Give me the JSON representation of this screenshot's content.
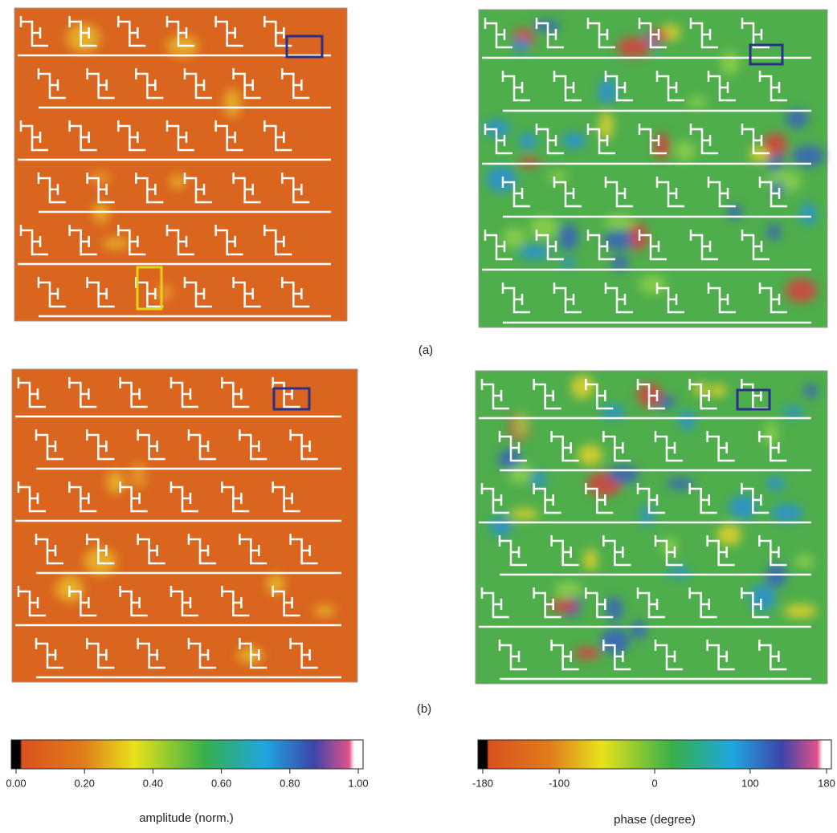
{
  "panels": [
    {
      "label": "(a)"
    },
    {
      "label": "(b)"
    }
  ],
  "colorbars": [
    {
      "label": "amplitude (norm.)",
      "lim": [
        0,
        1
      ],
      "ticks": [
        {
          "value": 0,
          "label": "0.00"
        },
        {
          "value": 0.2,
          "label": "0.20"
        },
        {
          "value": 0.4,
          "label": "0.40"
        },
        {
          "value": 0.6,
          "label": "0.60"
        },
        {
          "value": 0.8,
          "label": "0.80"
        },
        {
          "value": 1,
          "label": "1.00"
        }
      ]
    },
    {
      "label": "phase (degree)",
      "lim": [
        -180,
        180
      ],
      "ticks": [
        -180,
        -100,
        0,
        100,
        180
      ]
    }
  ]
}
